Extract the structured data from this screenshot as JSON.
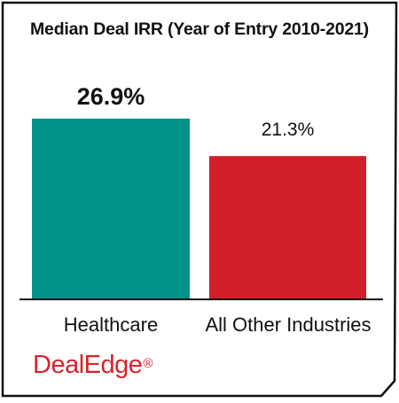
{
  "brand": {
    "name": "DealEdge",
    "mark": "®",
    "color": "#d9222a"
  },
  "chart_data": {
    "type": "bar",
    "title": "Median Deal IRR (Year of Entry 2010-2021)",
    "categories": [
      "Healthcare",
      "All Other Industries"
    ],
    "values": [
      26.9,
      21.3
    ],
    "value_labels": [
      "26.9%",
      "21.3%"
    ],
    "label_emphasis": [
      true,
      false
    ],
    "colors": [
      "#00918a",
      "#d12028"
    ],
    "ylim": [
      0,
      30
    ],
    "xlabel": "",
    "ylabel": "",
    "grid": false,
    "legend": "none"
  }
}
